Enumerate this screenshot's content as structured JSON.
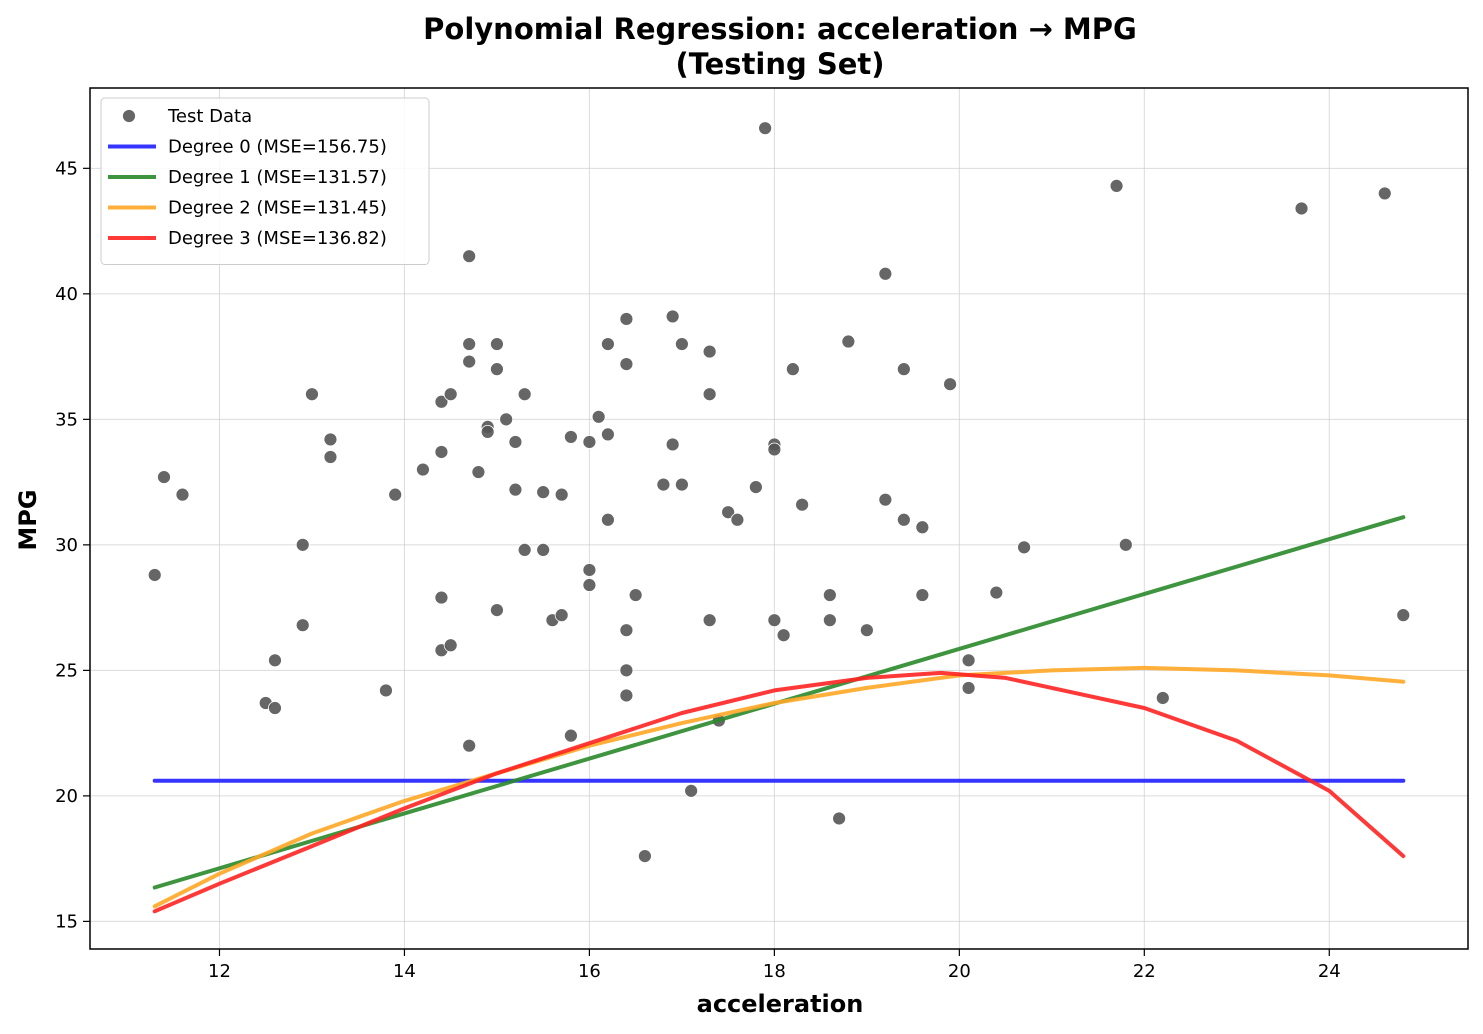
{
  "chart_data": {
    "type": "scatter",
    "title": "Polynomial Regression: acceleration → MPG",
    "subtitle": "(Testing Set)",
    "xlabel": "acceleration",
    "ylabel": "MPG",
    "xlim": [
      10.6,
      25.5
    ],
    "ylim": [
      13.9,
      48.2
    ],
    "xticks": [
      12,
      14,
      16,
      18,
      20,
      22,
      24
    ],
    "yticks": [
      15,
      20,
      25,
      30,
      35,
      40,
      45
    ],
    "grid": true,
    "legend_position": "top-left",
    "series": [
      {
        "name": "Test Data",
        "kind": "scatter",
        "color": "#555555",
        "points": [
          [
            11.3,
            28.8
          ],
          [
            11.4,
            32.7
          ],
          [
            11.6,
            32.0
          ],
          [
            12.5,
            23.7
          ],
          [
            12.6,
            25.4
          ],
          [
            12.6,
            23.5
          ],
          [
            12.9,
            30.0
          ],
          [
            12.9,
            26.8
          ],
          [
            13.0,
            36.0
          ],
          [
            13.2,
            34.2
          ],
          [
            13.2,
            33.5
          ],
          [
            13.8,
            24.2
          ],
          [
            13.9,
            32.0
          ],
          [
            14.2,
            33.0
          ],
          [
            14.4,
            35.7
          ],
          [
            14.4,
            33.7
          ],
          [
            14.4,
            27.9
          ],
          [
            14.4,
            25.8
          ],
          [
            14.5,
            36.0
          ],
          [
            14.5,
            26.0
          ],
          [
            14.7,
            41.5
          ],
          [
            14.7,
            38.0
          ],
          [
            14.7,
            37.3
          ],
          [
            14.7,
            22.0
          ],
          [
            14.8,
            32.9
          ],
          [
            14.9,
            34.7
          ],
          [
            14.9,
            34.5
          ],
          [
            15.0,
            38.0
          ],
          [
            15.0,
            37.0
          ],
          [
            15.0,
            27.4
          ],
          [
            15.1,
            35.0
          ],
          [
            15.2,
            34.1
          ],
          [
            15.2,
            32.2
          ],
          [
            15.3,
            36.0
          ],
          [
            15.3,
            29.8
          ],
          [
            15.5,
            32.1
          ],
          [
            15.5,
            29.8
          ],
          [
            15.6,
            27.0
          ],
          [
            15.7,
            32.0
          ],
          [
            15.7,
            27.2
          ],
          [
            15.8,
            34.3
          ],
          [
            15.8,
            22.4
          ],
          [
            16.0,
            34.1
          ],
          [
            16.0,
            29.0
          ],
          [
            16.0,
            28.4
          ],
          [
            16.1,
            35.1
          ],
          [
            16.2,
            38.0
          ],
          [
            16.2,
            34.4
          ],
          [
            16.2,
            31.0
          ],
          [
            16.4,
            39.0
          ],
          [
            16.4,
            37.2
          ],
          [
            16.4,
            26.6
          ],
          [
            16.4,
            25.0
          ],
          [
            16.4,
            24.0
          ],
          [
            16.5,
            28.0
          ],
          [
            16.6,
            17.6
          ],
          [
            16.8,
            32.4
          ],
          [
            16.9,
            39.1
          ],
          [
            16.9,
            34.0
          ],
          [
            17.0,
            38.0
          ],
          [
            17.0,
            32.4
          ],
          [
            17.1,
            20.2
          ],
          [
            17.3,
            37.7
          ],
          [
            17.3,
            36.0
          ],
          [
            17.3,
            27.0
          ],
          [
            17.4,
            23.0
          ],
          [
            17.5,
            31.3
          ],
          [
            17.6,
            31.0
          ],
          [
            17.8,
            32.3
          ],
          [
            17.9,
            46.6
          ],
          [
            18.0,
            34.0
          ],
          [
            18.0,
            33.8
          ],
          [
            18.0,
            27.0
          ],
          [
            18.1,
            26.4
          ],
          [
            18.2,
            37.0
          ],
          [
            18.3,
            31.6
          ],
          [
            18.6,
            28.0
          ],
          [
            18.6,
            27.0
          ],
          [
            18.7,
            19.1
          ],
          [
            18.8,
            38.1
          ],
          [
            19.0,
            26.6
          ],
          [
            19.2,
            40.8
          ],
          [
            19.2,
            31.8
          ],
          [
            19.4,
            37.0
          ],
          [
            19.4,
            31.0
          ],
          [
            19.6,
            30.7
          ],
          [
            19.6,
            28.0
          ],
          [
            19.9,
            36.4
          ],
          [
            20.1,
            25.4
          ],
          [
            20.1,
            24.3
          ],
          [
            20.4,
            28.1
          ],
          [
            20.7,
            29.9
          ],
          [
            21.7,
            44.3
          ],
          [
            21.8,
            30.0
          ],
          [
            22.2,
            23.9
          ],
          [
            23.7,
            43.4
          ],
          [
            24.6,
            44.0
          ],
          [
            24.8,
            27.2
          ]
        ]
      },
      {
        "name": "Degree 0 (MSE=156.75)",
        "kind": "line",
        "color": "#1f1fff",
        "x": [
          11.3,
          24.8
        ],
        "y": [
          20.6,
          20.6
        ]
      },
      {
        "name": "Degree 1 (MSE=131.57)",
        "kind": "line",
        "color": "#2a8a2a",
        "x": [
          11.3,
          24.8
        ],
        "y": [
          16.35,
          31.1
        ]
      },
      {
        "name": "Degree 2 (MSE=131.45)",
        "kind": "line",
        "color": "#ffa726",
        "x": [
          11.3,
          12.0,
          13.0,
          14.0,
          15.0,
          16.0,
          17.0,
          18.0,
          19.0,
          20.0,
          21.0,
          22.0,
          23.0,
          24.0,
          24.8
        ],
        "y": [
          15.6,
          16.9,
          18.5,
          19.8,
          20.9,
          22.0,
          22.9,
          23.7,
          24.3,
          24.8,
          25.0,
          25.1,
          25.0,
          24.8,
          24.55
        ]
      },
      {
        "name": "Degree 3 (MSE=136.82)",
        "kind": "line",
        "color": "#ff2222",
        "x": [
          11.3,
          12.0,
          13.0,
          14.0,
          15.0,
          16.0,
          17.0,
          18.0,
          19.0,
          19.8,
          20.5,
          21.0,
          22.0,
          23.0,
          24.0,
          24.8
        ],
        "y": [
          15.4,
          16.5,
          18.0,
          19.5,
          20.9,
          22.1,
          23.3,
          24.2,
          24.7,
          24.9,
          24.7,
          24.3,
          23.5,
          22.2,
          20.2,
          17.6
        ]
      }
    ]
  }
}
